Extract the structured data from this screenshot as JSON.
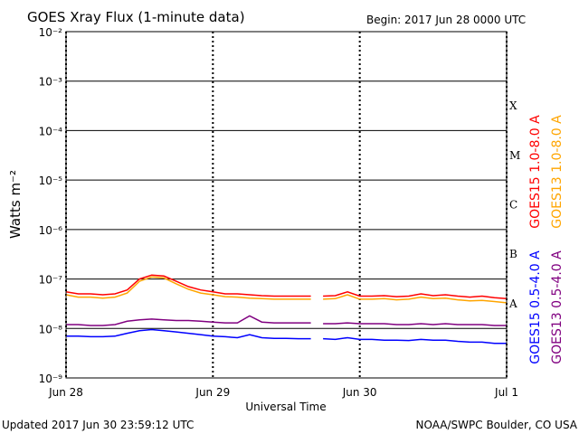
{
  "chart_data": {
    "type": "line",
    "title": "GOES Xray Flux (1-minute data)",
    "subtitle": "Begin:  2017 Jun 28 0000 UTC",
    "x_label": "Universal Time",
    "y_label": "Watts m⁻²",
    "footer_left": "Updated 2017 Jun 30 23:59:12 UTC",
    "footer_right": "NOAA/SWPC Boulder, CO USA",
    "log_y": true,
    "grid": true,
    "xlim": [
      0,
      72
    ],
    "xticks": [
      {
        "value": 0,
        "label": "Jun 28"
      },
      {
        "value": 24,
        "label": "Jun 29"
      },
      {
        "value": 48,
        "label": "Jun 30"
      },
      {
        "value": 72,
        "label": "Jul 1"
      }
    ],
    "ylim": [
      1e-09,
      0.01
    ],
    "yticks": [
      {
        "value": 1e-09,
        "label": "10⁻⁹"
      },
      {
        "value": 1e-08,
        "label": "10⁻⁸"
      },
      {
        "value": 1e-07,
        "label": "10⁻⁷"
      },
      {
        "value": 1e-06,
        "label": "10⁻⁶"
      },
      {
        "value": 1e-05,
        "label": "10⁻⁵"
      },
      {
        "value": 0.0001,
        "label": "10⁻⁴"
      },
      {
        "value": 0.001,
        "label": "10⁻³"
      },
      {
        "value": 0.01,
        "label": "10⁻²"
      }
    ],
    "flare_classes": [
      "A",
      "B",
      "C",
      "M",
      "X"
    ],
    "x": [
      0,
      2,
      4,
      6,
      8,
      10,
      12,
      14,
      16,
      18,
      20,
      22,
      24,
      26,
      28,
      30,
      32,
      34,
      36,
      38,
      40,
      41,
      42,
      44,
      46,
      48,
      50,
      52,
      54,
      56,
      58,
      60,
      62,
      64,
      66,
      68,
      70,
      72
    ],
    "series": [
      {
        "name": "GOES15 1.0-8.0 A",
        "color": "#ff0000",
        "values": [
          5.5e-08,
          5e-08,
          5e-08,
          4.8e-08,
          5e-08,
          6e-08,
          1e-07,
          1.2e-07,
          1.15e-07,
          9e-08,
          7e-08,
          6e-08,
          5.5e-08,
          5e-08,
          5e-08,
          4.8e-08,
          4.6e-08,
          4.5e-08,
          4.5e-08,
          4.5e-08,
          4.5e-08,
          null,
          4.5e-08,
          4.6e-08,
          5.5e-08,
          4.5e-08,
          4.5e-08,
          4.6e-08,
          4.4e-08,
          4.5e-08,
          5e-08,
          4.6e-08,
          4.8e-08,
          4.5e-08,
          4.3e-08,
          4.5e-08,
          4.2e-08,
          4e-08
        ]
      },
      {
        "name": "GOES13 1.0-8.0 A",
        "color": "#ffa500",
        "values": [
          4.8e-08,
          4.3e-08,
          4.3e-08,
          4.1e-08,
          4.3e-08,
          5.2e-08,
          9e-08,
          1.1e-07,
          1.05e-07,
          8e-08,
          6.2e-08,
          5.2e-08,
          4.8e-08,
          4.4e-08,
          4.3e-08,
          4.1e-08,
          4e-08,
          3.9e-08,
          3.9e-08,
          3.9e-08,
          3.9e-08,
          null,
          3.9e-08,
          4e-08,
          4.8e-08,
          3.9e-08,
          3.9e-08,
          4e-08,
          3.8e-08,
          3.9e-08,
          4.3e-08,
          4e-08,
          4.1e-08,
          3.8e-08,
          3.6e-08,
          3.7e-08,
          3.5e-08,
          3.3e-08
        ]
      },
      {
        "name": "GOES15 0.5-4.0 A",
        "color": "#0000ff",
        "values": [
          7e-09,
          7e-09,
          6.8e-09,
          6.8e-09,
          7e-09,
          8e-09,
          9e-09,
          9.5e-09,
          9e-09,
          8.5e-09,
          8e-09,
          7.5e-09,
          7e-09,
          6.8e-09,
          6.5e-09,
          7.5e-09,
          6.5e-09,
          6.3e-09,
          6.3e-09,
          6.2e-09,
          6.2e-09,
          null,
          6.2e-09,
          6e-09,
          6.5e-09,
          6e-09,
          6e-09,
          5.8e-09,
          5.8e-09,
          5.7e-09,
          6e-09,
          5.8e-09,
          5.8e-09,
          5.5e-09,
          5.3e-09,
          5.3e-09,
          5e-09,
          5e-09
        ]
      },
      {
        "name": "GOES13 0.5-4.0 A",
        "color": "#800080",
        "values": [
          1.2e-08,
          1.2e-08,
          1.15e-08,
          1.15e-08,
          1.2e-08,
          1.4e-08,
          1.5e-08,
          1.55e-08,
          1.5e-08,
          1.45e-08,
          1.45e-08,
          1.4e-08,
          1.35e-08,
          1.3e-08,
          1.3e-08,
          1.8e-08,
          1.35e-08,
          1.3e-08,
          1.3e-08,
          1.3e-08,
          1.3e-08,
          null,
          1.25e-08,
          1.25e-08,
          1.3e-08,
          1.25e-08,
          1.25e-08,
          1.25e-08,
          1.2e-08,
          1.2e-08,
          1.25e-08,
          1.2e-08,
          1.25e-08,
          1.2e-08,
          1.2e-08,
          1.2e-08,
          1.15e-08,
          1.15e-08
        ]
      }
    ]
  }
}
